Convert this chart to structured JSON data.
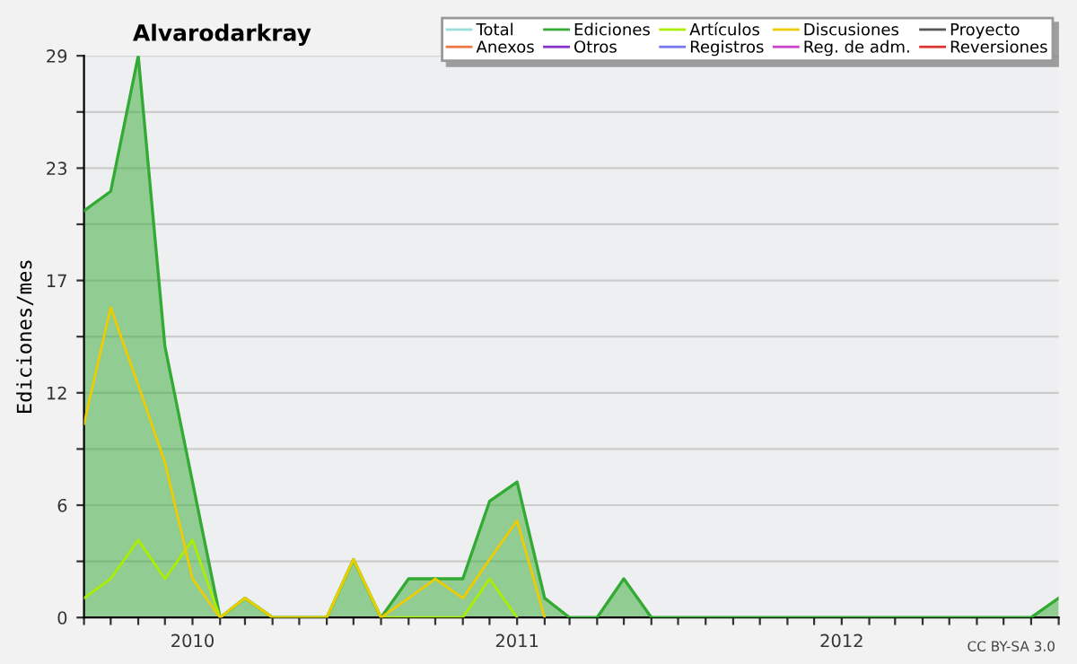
{
  "chart_data": {
    "type": "line",
    "title": "Alvarodarkray",
    "ylabel": "Ediciones/mes",
    "x": [
      "2009-09",
      "2009-10",
      "2009-11",
      "2009-12",
      "2010-01",
      "2010-02",
      "2010-03",
      "2010-04",
      "2010-05",
      "2010-06",
      "2010-07",
      "2010-08",
      "2010-09",
      "2010-10",
      "2010-11",
      "2010-12",
      "2011-01",
      "2011-02",
      "2011-03",
      "2011-04",
      "2011-05",
      "2011-06",
      "2011-07",
      "2011-08",
      "2011-09",
      "2011-10",
      "2011-11",
      "2011-12",
      "2012-01",
      "2012-02",
      "2012-03",
      "2012-04",
      "2012-05",
      "2012-06",
      "2012-07",
      "2012-08",
      "2012-09"
    ],
    "series": [
      {
        "name": "Total",
        "color": "#99dddd",
        "values": [
          null,
          null,
          null,
          null,
          null,
          null,
          null,
          null,
          null,
          null,
          null,
          null,
          null,
          null,
          null,
          null,
          null,
          null,
          null,
          null,
          null,
          null,
          null,
          null,
          null,
          null,
          null,
          null,
          null,
          null,
          null,
          null,
          null,
          null,
          null,
          null,
          null
        ]
      },
      {
        "name": "Ediciones",
        "type": "area",
        "color": "#33aa33",
        "values": [
          21,
          22,
          29,
          14,
          7,
          0,
          1,
          0,
          0,
          0,
          3,
          0,
          2,
          2,
          2,
          6,
          7,
          1,
          0,
          0,
          2,
          0,
          0,
          0,
          0,
          0,
          0,
          0,
          0,
          0,
          0,
          0,
          0,
          0,
          0,
          0,
          1
        ]
      },
      {
        "name": "Artículos",
        "color": "#aaee00",
        "values": [
          1,
          2,
          4,
          2,
          4,
          0,
          1,
          0,
          0,
          0,
          3,
          0,
          0,
          0,
          0,
          2,
          0,
          null,
          null,
          null,
          null,
          null,
          null,
          null,
          null,
          null,
          null,
          null,
          null,
          null,
          null,
          null,
          null,
          null,
          null,
          null,
          null
        ]
      },
      {
        "name": "Discusiones",
        "color": "#eecc00",
        "values": [
          10,
          16,
          12,
          8,
          2,
          0,
          1,
          0,
          0,
          0,
          3,
          0,
          1,
          2,
          1,
          3,
          5,
          0,
          null,
          null,
          null,
          null,
          null,
          null,
          null,
          null,
          null,
          null,
          null,
          null,
          null,
          null,
          null,
          null,
          null,
          null,
          null
        ]
      },
      {
        "name": "Proyecto",
        "color": "#555555",
        "values": [
          null,
          null,
          null,
          null,
          null,
          null,
          null,
          null,
          null,
          null,
          null,
          null,
          null,
          null,
          null,
          null,
          null,
          null,
          null,
          null,
          null,
          null,
          null,
          null,
          null,
          null,
          null,
          null,
          null,
          null,
          null,
          null,
          null,
          null,
          null,
          null,
          null
        ]
      },
      {
        "name": "Anexos",
        "color": "#ee7744",
        "values": [
          null,
          null,
          null,
          null,
          null,
          null,
          null,
          null,
          null,
          null,
          null,
          null,
          null,
          null,
          null,
          null,
          null,
          null,
          null,
          null,
          null,
          null,
          null,
          null,
          null,
          null,
          null,
          null,
          null,
          null,
          null,
          null,
          null,
          null,
          null,
          null,
          null
        ]
      },
      {
        "name": "Otros",
        "color": "#8833cc",
        "values": [
          null,
          null,
          null,
          null,
          null,
          null,
          null,
          null,
          null,
          null,
          null,
          null,
          null,
          null,
          null,
          null,
          null,
          null,
          null,
          null,
          null,
          null,
          null,
          null,
          null,
          null,
          null,
          null,
          null,
          null,
          null,
          null,
          null,
          null,
          null,
          null,
          null
        ]
      },
      {
        "name": "Registros",
        "color": "#7777ee",
        "values": [
          null,
          null,
          null,
          null,
          null,
          null,
          null,
          null,
          null,
          null,
          null,
          null,
          null,
          null,
          null,
          null,
          null,
          null,
          null,
          null,
          null,
          null,
          null,
          null,
          null,
          null,
          null,
          null,
          null,
          null,
          null,
          null,
          null,
          null,
          null,
          null,
          null
        ]
      },
      {
        "name": "Reg. de adm.",
        "color": "#cc44cc",
        "values": [
          null,
          null,
          null,
          null,
          null,
          null,
          null,
          null,
          null,
          null,
          null,
          null,
          null,
          null,
          null,
          null,
          null,
          null,
          null,
          null,
          null,
          null,
          null,
          null,
          null,
          null,
          null,
          null,
          null,
          null,
          null,
          null,
          null,
          null,
          null,
          null,
          null
        ]
      },
      {
        "name": "Reversiones",
        "color": "#dd3333",
        "values": [
          null,
          null,
          null,
          null,
          null,
          null,
          null,
          null,
          null,
          null,
          null,
          null,
          null,
          null,
          null,
          null,
          null,
          null,
          null,
          null,
          null,
          null,
          null,
          null,
          null,
          null,
          null,
          null,
          null,
          null,
          null,
          null,
          null,
          null,
          null,
          null,
          null
        ]
      }
    ],
    "xlim": [
      "2009-09",
      "2012-09"
    ],
    "xticks": [
      {
        "value": "2009-09",
        "label": null
      },
      {
        "value": "2009-10",
        "label": null
      },
      {
        "value": "2009-11",
        "label": null
      },
      {
        "value": "2009-12",
        "label": null
      },
      {
        "value": "2010-01",
        "label": "2010"
      },
      {
        "value": "2010-02",
        "label": null
      },
      {
        "value": "2010-03",
        "label": null
      },
      {
        "value": "2010-04",
        "label": null
      },
      {
        "value": "2010-05",
        "label": null
      },
      {
        "value": "2010-06",
        "label": null
      },
      {
        "value": "2010-07",
        "label": null
      },
      {
        "value": "2010-08",
        "label": null
      },
      {
        "value": "2010-09",
        "label": null
      },
      {
        "value": "2010-10",
        "label": null
      },
      {
        "value": "2010-11",
        "label": null
      },
      {
        "value": "2010-12",
        "label": null
      },
      {
        "value": "2011-01",
        "label": "2011"
      },
      {
        "value": "2011-02",
        "label": null
      },
      {
        "value": "2011-03",
        "label": null
      },
      {
        "value": "2011-04",
        "label": null
      },
      {
        "value": "2011-05",
        "label": null
      },
      {
        "value": "2011-06",
        "label": null
      },
      {
        "value": "2011-07",
        "label": null
      },
      {
        "value": "2011-08",
        "label": null
      },
      {
        "value": "2011-09",
        "label": null
      },
      {
        "value": "2011-10",
        "label": null
      },
      {
        "value": "2011-11",
        "label": null
      },
      {
        "value": "2011-12",
        "label": null
      },
      {
        "value": "2012-01",
        "label": "2012"
      },
      {
        "value": "2012-02",
        "label": null
      },
      {
        "value": "2012-03",
        "label": null
      },
      {
        "value": "2012-04",
        "label": null
      },
      {
        "value": "2012-05",
        "label": null
      },
      {
        "value": "2012-06",
        "label": null
      },
      {
        "value": "2012-07",
        "label": null
      },
      {
        "value": "2012-08",
        "label": null
      },
      {
        "value": "2012-09",
        "label": null
      }
    ],
    "ylim": [
      0,
      29
    ],
    "yticks": [
      0,
      {
        "value": 2.9,
        "label": null
      },
      {
        "value": 5.8,
        "label": "6"
      },
      {
        "value": 8.7,
        "label": null
      },
      {
        "value": 11.6,
        "label": "12"
      },
      {
        "value": 14.5,
        "label": null
      },
      {
        "value": 17.4,
        "label": "17"
      },
      {
        "value": 20.3,
        "label": null
      },
      {
        "value": 23.2,
        "label": "23"
      },
      {
        "value": 26.1,
        "label": null
      },
      29
    ],
    "grid": "y",
    "legend": "top right",
    "annotations": [
      "CC BY-SA 3.0"
    ]
  }
}
